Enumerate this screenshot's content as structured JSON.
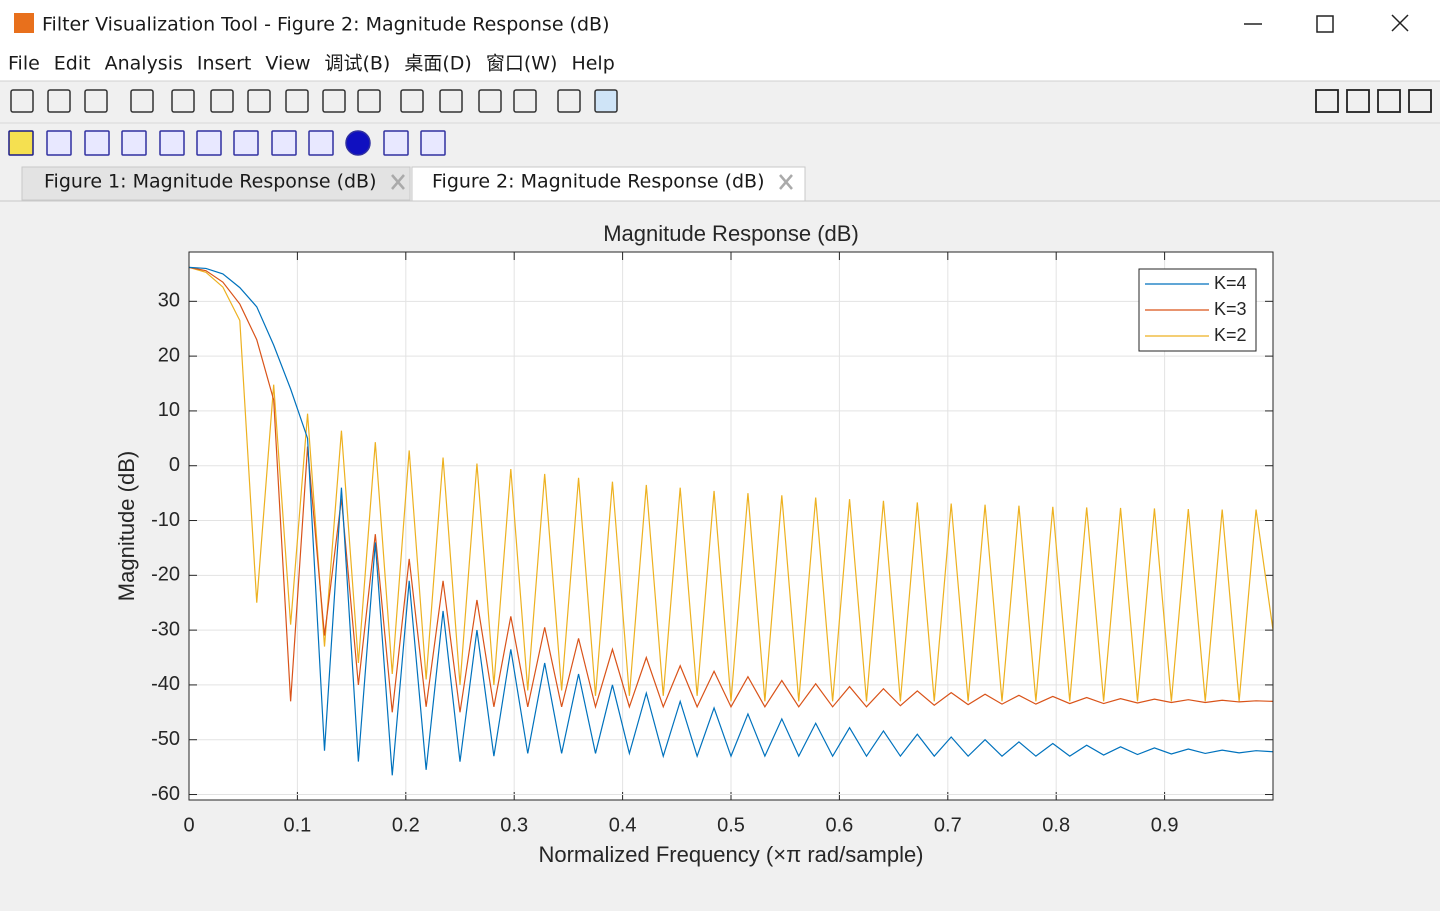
{
  "window": {
    "title": "Filter Visualization Tool - Figure 2: Magnitude Response (dB)",
    "menu": [
      "File",
      "Edit",
      "Analysis",
      "Insert",
      "View",
      "调试(B)",
      "桌面(D)",
      "窗口(W)",
      "Help"
    ],
    "tabs": [
      "Figure 1: Magnitude Response (dB)",
      "Figure 2: Magnitude Response (dB)"
    ]
  },
  "chart_data": {
    "type": "line",
    "title": "Magnitude Response (dB)",
    "xlabel": "Normalized Frequency (×π rad/sample)",
    "ylabel": "Magnitude (dB)",
    "xlim": [
      0,
      1
    ],
    "ylim": [
      -61,
      39
    ],
    "xticks": [
      0,
      0.1,
      0.2,
      0.3,
      0.4,
      0.5,
      0.6,
      0.7,
      0.8,
      0.9
    ],
    "yticks": [
      -60,
      -50,
      -40,
      -30,
      -20,
      -10,
      0,
      10,
      20,
      30
    ],
    "grid": true,
    "legend": "upper right",
    "x": [
      0,
      0.015625,
      0.03125,
      0.046875,
      0.0625,
      0.078125,
      0.09375,
      0.109375,
      0.125,
      0.140625,
      0.15625,
      0.171875,
      0.1875,
      0.203125,
      0.21875,
      0.234375,
      0.25,
      0.265625,
      0.28125,
      0.296875,
      0.3125,
      0.328125,
      0.34375,
      0.359375,
      0.375,
      0.390625,
      0.40625,
      0.421875,
      0.4375,
      0.453125,
      0.46875,
      0.484375,
      0.5,
      0.515625,
      0.53125,
      0.546875,
      0.5625,
      0.578125,
      0.59375,
      0.609375,
      0.625,
      0.640625,
      0.65625,
      0.671875,
      0.6875,
      0.703125,
      0.71875,
      0.734375,
      0.75,
      0.765625,
      0.78125,
      0.796875,
      0.8125,
      0.828125,
      0.84375,
      0.859375,
      0.875,
      0.890625,
      0.90625,
      0.921875,
      0.9375,
      0.953125,
      0.96875,
      0.984375,
      1
    ],
    "series": [
      {
        "name": "K=4",
        "color": "#0072bd",
        "values": [
          36.2,
          36,
          35,
          32.5,
          29,
          22,
          14,
          5,
          -52,
          -4,
          -54,
          -14,
          -56.5,
          -21,
          -55.5,
          -26.5,
          -54,
          -30,
          -53,
          -33.5,
          -52.5,
          -36,
          -52.5,
          -38,
          -52.5,
          -40,
          -52.5,
          -41.5,
          -53,
          -43,
          -53,
          -44.2,
          -53,
          -45.3,
          -53,
          -46.2,
          -53,
          -47,
          -53,
          -47.8,
          -53,
          -48.4,
          -53,
          -49,
          -53,
          -49.5,
          -53,
          -50,
          -53,
          -50.4,
          -53,
          -50.7,
          -53,
          -51,
          -52.8,
          -51.3,
          -52.7,
          -51.5,
          -52.6,
          -51.7,
          -52.5,
          -51.9,
          -52.4,
          -52,
          -52.2
        ]
      },
      {
        "name": "K=3",
        "color": "#d95319",
        "values": [
          36.2,
          35.6,
          33.5,
          29.5,
          23,
          12,
          -43,
          3.5,
          -31,
          -6,
          -40,
          -12.5,
          -45,
          -17,
          -44,
          -21,
          -45,
          -24.5,
          -44,
          -27.5,
          -44,
          -29.5,
          -44,
          -31.5,
          -44,
          -33.5,
          -44,
          -35,
          -44,
          -36.5,
          -44,
          -37.5,
          -44,
          -38.5,
          -44,
          -39.2,
          -44,
          -39.8,
          -44,
          -40.3,
          -44,
          -40.7,
          -43.8,
          -41.1,
          -43.7,
          -41.4,
          -43.6,
          -41.7,
          -43.5,
          -41.9,
          -43.5,
          -42.1,
          -43.4,
          -42.3,
          -43.4,
          -42.5,
          -43.3,
          -42.6,
          -43.2,
          -42.7,
          -43.2,
          -42.8,
          -43.1,
          -42.9,
          -43
        ]
      },
      {
        "name": "K=2",
        "color": "#edb120",
        "values": [
          36.2,
          35.3,
          32.6,
          26.5,
          -25,
          14.8,
          -29,
          9.5,
          -33,
          6.4,
          -36,
          4.3,
          -38,
          2.8,
          -39,
          1.5,
          -40,
          0.4,
          -40,
          -0.6,
          -41,
          -1.5,
          -41,
          -2.2,
          -42,
          -2.9,
          -42,
          -3.5,
          -42,
          -4,
          -42,
          -4.6,
          -43,
          -5,
          -43,
          -5.4,
          -43,
          -5.8,
          -43,
          -6.1,
          -43,
          -6.4,
          -43,
          -6.7,
          -43,
          -6.9,
          -43,
          -7.1,
          -43,
          -7.3,
          -43,
          -7.5,
          -43,
          -7.6,
          -43,
          -7.7,
          -43,
          -7.8,
          -43,
          -7.9,
          -43,
          -8,
          -43,
          -8,
          -30
        ]
      }
    ]
  }
}
